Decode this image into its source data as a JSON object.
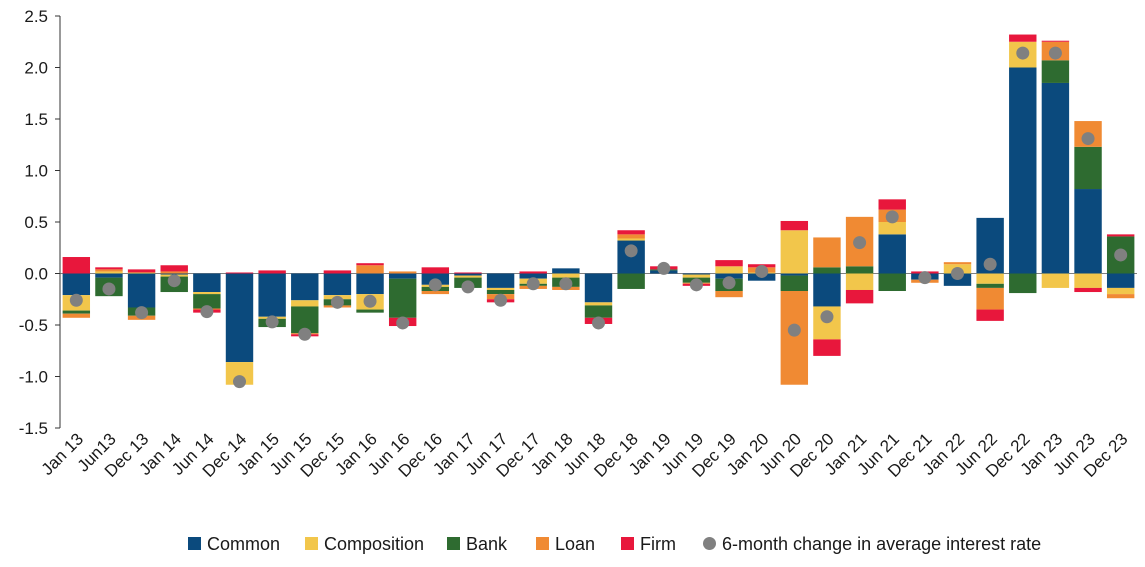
{
  "chart_data": {
    "type": "bar",
    "stacked": true,
    "categories": [
      "Jan 13",
      "Jun13",
      "Dec 13",
      "Jan 14",
      "Jun 14",
      "Dec 14",
      "Jan 15",
      "Jun 15",
      "Dec 15",
      "Jan 16",
      "Jun 16",
      "Dec 16",
      "Jan 17",
      "Jun 17",
      "Dec 17",
      "Jan 18",
      "Jun 18",
      "Dec 18",
      "Jan 19",
      "Jun 19",
      "Dec 19",
      "Jan 20",
      "Jun 20",
      "Dec 20",
      "Jan 21",
      "Jun 21",
      "Dec 21",
      "Jan 22",
      "Jun 22",
      "Dec 22",
      "Jan 23",
      "Jun 23",
      "Dec 23"
    ],
    "ylim": [
      -1.5,
      2.5
    ],
    "yticks": [
      -1.5,
      -1.0,
      -0.5,
      0.0,
      0.5,
      1.0,
      1.5,
      2.0,
      2.5
    ],
    "ytick_labels": [
      "-1.5",
      "-1.0",
      "-0.5",
      "0.0",
      "0.5",
      "1.0",
      "1.5",
      "2.0",
      "2.5"
    ],
    "series": [
      {
        "name": "Common",
        "color": "#0b4a7d",
        "values": [
          -0.21,
          -0.04,
          -0.33,
          -0.01,
          -0.18,
          -0.86,
          -0.42,
          -0.26,
          -0.21,
          -0.2,
          -0.05,
          -0.11,
          -0.02,
          -0.14,
          -0.05,
          0.05,
          -0.28,
          0.32,
          0.03,
          -0.01,
          -0.05,
          -0.07,
          -0.02,
          -0.32,
          0.0,
          0.38,
          -0.06,
          -0.12,
          0.54,
          2.0,
          1.85,
          0.82,
          -0.14
        ]
      },
      {
        "name": "Composition",
        "color": "#f2c64b",
        "values": [
          -0.15,
          0.02,
          0.01,
          -0.02,
          -0.02,
          -0.22,
          -0.02,
          -0.06,
          -0.04,
          -0.15,
          0.0,
          -0.02,
          -0.02,
          -0.02,
          -0.05,
          -0.04,
          -0.03,
          0.02,
          0.0,
          -0.03,
          0.07,
          0.01,
          0.42,
          -0.32,
          -0.16,
          0.12,
          0.0,
          0.09,
          -0.1,
          0.25,
          -0.14,
          -0.14,
          -0.06
        ]
      },
      {
        "name": "Bank",
        "color": "#2e6b30",
        "values": [
          -0.03,
          -0.18,
          -0.08,
          -0.15,
          -0.14,
          0.0,
          -0.08,
          -0.26,
          -0.06,
          -0.03,
          -0.38,
          -0.04,
          -0.1,
          -0.04,
          -0.02,
          -0.09,
          -0.12,
          -0.15,
          0.01,
          -0.05,
          -0.12,
          0.0,
          -0.15,
          0.06,
          0.07,
          -0.17,
          0.0,
          0.0,
          -0.04,
          -0.19,
          0.22,
          0.41,
          0.36
        ]
      },
      {
        "name": "Loan",
        "color": "#f08a33",
        "values": [
          -0.04,
          0.02,
          -0.04,
          0.02,
          -0.01,
          0.0,
          0.0,
          -0.01,
          -0.02,
          0.08,
          0.02,
          -0.03,
          0.0,
          -0.05,
          -0.03,
          -0.03,
          0.0,
          0.04,
          0.0,
          -0.01,
          -0.06,
          0.05,
          -0.91,
          0.29,
          0.48,
          0.12,
          -0.03,
          0.02,
          -0.21,
          0.0,
          0.18,
          0.25,
          -0.04
        ]
      },
      {
        "name": "Firm",
        "color": "#e8173c",
        "values": [
          0.16,
          0.02,
          0.03,
          0.06,
          -0.03,
          0.01,
          0.03,
          -0.02,
          0.03,
          0.02,
          -0.08,
          0.06,
          0.01,
          -0.03,
          0.02,
          0.0,
          -0.06,
          0.04,
          0.03,
          -0.02,
          0.06,
          0.03,
          0.09,
          -0.16,
          -0.13,
          0.1,
          0.02,
          0.0,
          -0.11,
          0.07,
          0.01,
          -0.04,
          0.02
        ]
      }
    ],
    "points": {
      "name": "6-month change in average interest rate",
      "color": "#808080",
      "values": [
        -0.26,
        -0.15,
        -0.38,
        -0.07,
        -0.37,
        -1.05,
        -0.47,
        -0.59,
        -0.28,
        -0.27,
        -0.48,
        -0.11,
        -0.13,
        -0.26,
        -0.1,
        -0.1,
        -0.48,
        0.22,
        0.05,
        -0.11,
        -0.09,
        0.02,
        -0.55,
        -0.42,
        0.3,
        0.55,
        -0.04,
        0.0,
        0.09,
        2.14,
        2.14,
        1.31,
        0.18
      ]
    },
    "legend_position": "bottom",
    "grid": false
  }
}
